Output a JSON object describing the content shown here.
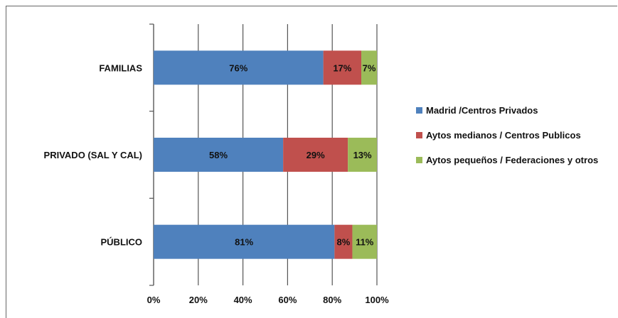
{
  "chart_data": {
    "type": "bar",
    "orientation": "horizontal",
    "stacked": "100%",
    "categories": [
      "FAMILIAS",
      "PRIVADO (SAL Y CAL)",
      "PÚBLICO"
    ],
    "series": [
      {
        "name": "Madrid /Centros Privados",
        "values": [
          76,
          58,
          81
        ],
        "labels": [
          "76%",
          "58%",
          "81%"
        ],
        "color": "#4f81bd"
      },
      {
        "name": "Aytos medianos / Centros Publicos",
        "values": [
          17,
          29,
          8
        ],
        "labels": [
          "17%",
          "29%",
          "8%"
        ],
        "color": "#c0504d"
      },
      {
        "name": "Aytos pequeños / Federaciones y otros",
        "values": [
          7,
          13,
          11
        ],
        "labels": [
          "7%",
          "13%",
          "11%"
        ],
        "color": "#9bbb59"
      }
    ],
    "x_ticks": [
      "0%",
      "20%",
      "40%",
      "60%",
      "80%",
      "100%"
    ],
    "xlim": [
      0,
      100
    ],
    "grid": true,
    "legend_position": "right"
  }
}
